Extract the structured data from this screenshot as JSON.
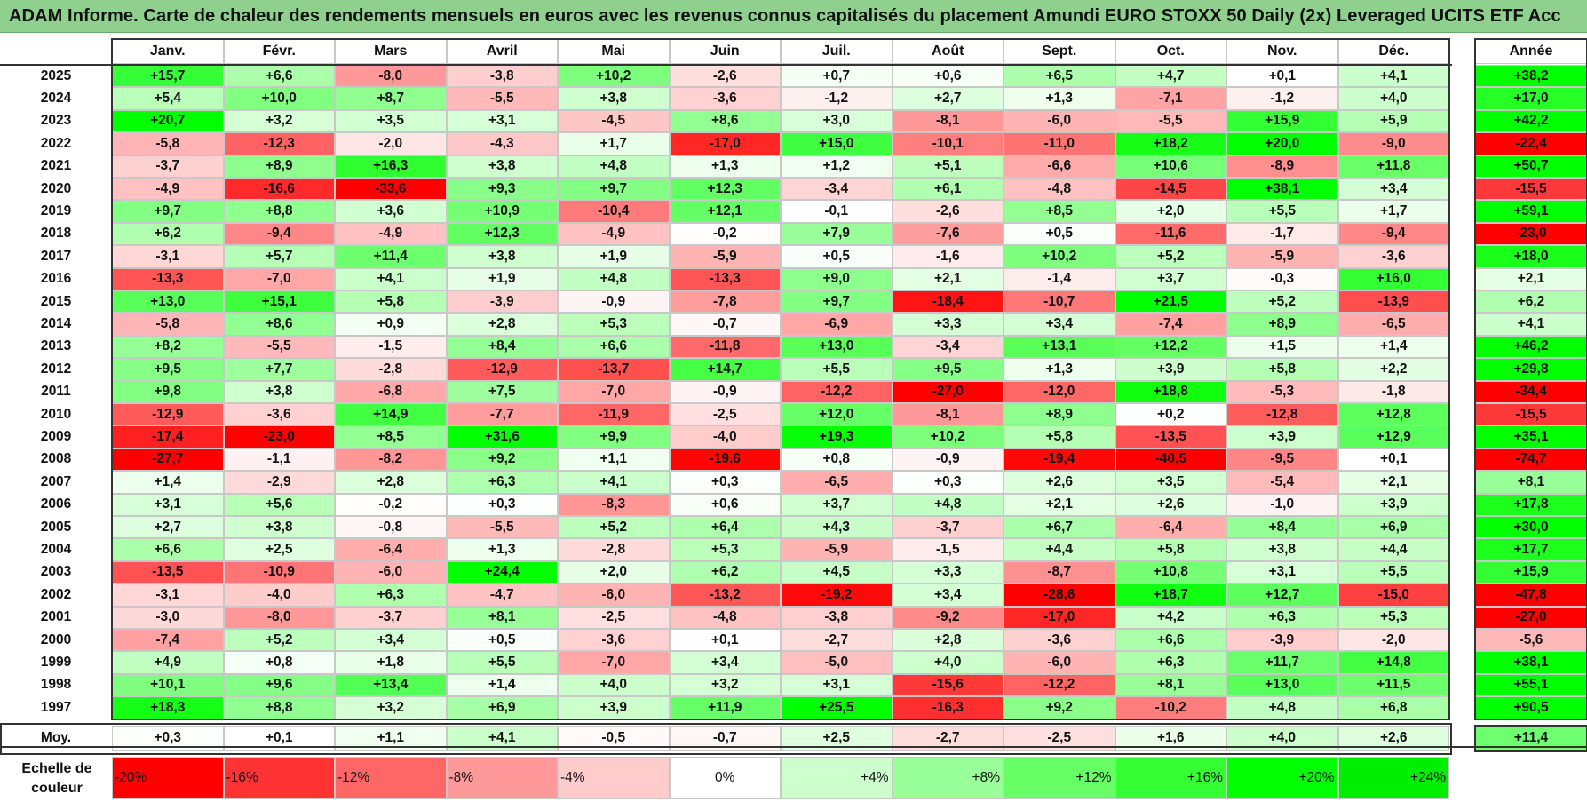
{
  "title": "ADAM Informe. Carte de chaleur des rendements mensuels en euros avec les revenus connus capitalisés du placement Amundi EURO STOXX 50 Daily (2x) Leveraged UCITS ETF Acc",
  "chart_data": {
    "type": "heatmap",
    "columns": [
      "Janv.",
      "Févr.",
      "Mars",
      "Avril",
      "Mai",
      "Juin",
      "Juil.",
      "Août",
      "Sept.",
      "Oct.",
      "Nov.",
      "Déc."
    ],
    "year_column": "Année",
    "rows": [
      {
        "year": "2025",
        "values": [
          15.7,
          6.6,
          -8.0,
          -3.8,
          10.2,
          -2.6,
          0.7,
          0.6,
          6.5,
          4.7,
          0.1,
          4.1
        ],
        "annual": 38.2
      },
      {
        "year": "2024",
        "values": [
          5.4,
          10.0,
          8.7,
          -5.5,
          3.8,
          -3.6,
          -1.2,
          2.7,
          1.3,
          -7.1,
          -1.2,
          4.0
        ],
        "annual": 17.0
      },
      {
        "year": "2023",
        "values": [
          20.7,
          3.2,
          3.5,
          3.1,
          -4.5,
          8.6,
          3.0,
          -8.1,
          -6.0,
          -5.5,
          15.9,
          5.9
        ],
        "annual": 42.2
      },
      {
        "year": "2022",
        "values": [
          -5.8,
          -12.3,
          -2.0,
          -4.3,
          1.7,
          -17.0,
          15.0,
          -10.1,
          -11.0,
          18.2,
          20.0,
          -9.0
        ],
        "annual": -22.4
      },
      {
        "year": "2021",
        "values": [
          -3.7,
          8.9,
          16.3,
          3.8,
          4.8,
          1.3,
          1.2,
          5.1,
          -6.6,
          10.6,
          -8.9,
          11.8
        ],
        "annual": 50.7
      },
      {
        "year": "2020",
        "values": [
          -4.9,
          -16.6,
          -33.6,
          9.3,
          9.7,
          12.3,
          -3.4,
          6.1,
          -4.8,
          -14.5,
          38.1,
          3.4
        ],
        "annual": -15.5
      },
      {
        "year": "2019",
        "values": [
          9.7,
          8.8,
          3.6,
          10.9,
          -10.4,
          12.1,
          -0.1,
          -2.6,
          8.5,
          2.0,
          5.5,
          1.7
        ],
        "annual": 59.1
      },
      {
        "year": "2018",
        "values": [
          6.2,
          -9.4,
          -4.9,
          12.3,
          -4.9,
          -0.2,
          7.9,
          -7.6,
          0.5,
          -11.6,
          -1.7,
          -9.4
        ],
        "annual": -23.0
      },
      {
        "year": "2017",
        "values": [
          -3.1,
          5.7,
          11.4,
          3.8,
          1.9,
          -5.9,
          0.5,
          -1.6,
          10.2,
          5.2,
          -5.9,
          -3.6
        ],
        "annual": 18.0
      },
      {
        "year": "2016",
        "values": [
          -13.3,
          -7.0,
          4.1,
          1.9,
          4.8,
          -13.3,
          9.0,
          2.1,
          -1.4,
          3.7,
          -0.3,
          16.0
        ],
        "annual": 2.1
      },
      {
        "year": "2015",
        "values": [
          13.0,
          15.1,
          5.8,
          -3.9,
          -0.9,
          -7.8,
          9.7,
          -18.4,
          -10.7,
          21.5,
          5.2,
          -13.9
        ],
        "annual": 6.2
      },
      {
        "year": "2014",
        "values": [
          -5.8,
          8.6,
          0.9,
          2.8,
          5.3,
          -0.7,
          -6.9,
          3.3,
          3.4,
          -7.4,
          8.9,
          -6.5
        ],
        "annual": 4.1
      },
      {
        "year": "2013",
        "values": [
          8.2,
          -5.5,
          -1.5,
          8.4,
          6.6,
          -11.8,
          13.0,
          -3.4,
          13.1,
          12.2,
          1.5,
          1.4
        ],
        "annual": 46.2
      },
      {
        "year": "2012",
        "values": [
          9.5,
          7.7,
          -2.8,
          -12.9,
          -13.7,
          14.7,
          5.5,
          9.5,
          1.3,
          3.9,
          5.8,
          2.2
        ],
        "annual": 29.8
      },
      {
        "year": "2011",
        "values": [
          9.8,
          3.8,
          -6.8,
          7.5,
          -7.0,
          -0.9,
          -12.2,
          -27.0,
          -12.0,
          18.8,
          -5.3,
          -1.8
        ],
        "annual": -34.4
      },
      {
        "year": "2010",
        "values": [
          -12.9,
          -3.6,
          14.9,
          -7.7,
          -11.9,
          -2.5,
          12.0,
          -8.1,
          8.9,
          0.2,
          -12.8,
          12.8
        ],
        "annual": -15.5
      },
      {
        "year": "2009",
        "values": [
          -17.4,
          -23.0,
          8.5,
          31.6,
          9.9,
          -4.0,
          19.3,
          10.2,
          5.8,
          -13.5,
          3.9,
          12.9
        ],
        "annual": 35.1
      },
      {
        "year": "2008",
        "values": [
          -27.7,
          -1.1,
          -8.2,
          9.2,
          1.1,
          -19.6,
          0.8,
          -0.9,
          -19.4,
          -40.5,
          -9.5,
          0.1
        ],
        "annual": -74.7
      },
      {
        "year": "2007",
        "values": [
          1.4,
          -2.9,
          2.8,
          6.3,
          4.1,
          0.3,
          -6.5,
          0.3,
          2.6,
          3.5,
          -5.4,
          2.1
        ],
        "annual": 8.1
      },
      {
        "year": "2006",
        "values": [
          3.1,
          5.6,
          -0.2,
          0.3,
          -8.3,
          0.6,
          3.7,
          4.8,
          2.1,
          2.6,
          -1.0,
          3.9
        ],
        "annual": 17.8
      },
      {
        "year": "2005",
        "values": [
          2.7,
          3.8,
          -0.8,
          -5.5,
          5.2,
          6.4,
          4.3,
          -3.7,
          6.7,
          -6.4,
          8.4,
          6.9
        ],
        "annual": 30.0
      },
      {
        "year": "2004",
        "values": [
          6.6,
          2.5,
          -6.4,
          1.3,
          -2.8,
          5.3,
          -5.9,
          -1.5,
          4.4,
          5.8,
          3.8,
          4.4
        ],
        "annual": 17.7
      },
      {
        "year": "2003",
        "values": [
          -13.5,
          -10.9,
          -6.0,
          24.4,
          2.0,
          6.2,
          4.5,
          3.3,
          -8.7,
          10.8,
          3.1,
          5.5
        ],
        "annual": 15.9
      },
      {
        "year": "2002",
        "values": [
          -3.1,
          -4.0,
          6.3,
          -4.7,
          -6.0,
          -13.2,
          -19.2,
          3.4,
          -28.6,
          18.7,
          12.7,
          -15.0
        ],
        "annual": -47.8
      },
      {
        "year": "2001",
        "values": [
          -3.0,
          -8.0,
          -3.7,
          8.1,
          -2.5,
          -4.8,
          -3.8,
          -9.2,
          -17.0,
          4.2,
          6.3,
          5.3
        ],
        "annual": -27.0
      },
      {
        "year": "2000",
        "values": [
          -7.4,
          5.2,
          3.4,
          0.5,
          -3.6,
          0.1,
          -2.7,
          2.8,
          -3.6,
          6.6,
          -3.9,
          -2.0
        ],
        "annual": -5.6
      },
      {
        "year": "1999",
        "values": [
          4.9,
          0.8,
          1.8,
          5.5,
          -7.0,
          3.4,
          -5.0,
          4.0,
          -6.0,
          6.3,
          11.7,
          14.8
        ],
        "annual": 38.1
      },
      {
        "year": "1998",
        "values": [
          10.1,
          9.6,
          13.4,
          1.4,
          4.0,
          3.2,
          3.1,
          -15.6,
          -12.2,
          8.1,
          13.0,
          11.5
        ],
        "annual": 55.1
      },
      {
        "year": "1997",
        "values": [
          18.3,
          8.8,
          3.2,
          6.9,
          3.9,
          11.9,
          25.5,
          -16.3,
          9.2,
          -10.2,
          4.8,
          6.8
        ],
        "annual": 90.5
      }
    ],
    "average": {
      "label": "Moy.",
      "values": [
        0.3,
        0.1,
        1.1,
        4.1,
        -0.5,
        -0.7,
        2.5,
        -2.7,
        -2.5,
        1.6,
        4.0,
        2.6
      ],
      "annual": 11.4
    },
    "color_scale": {
      "label": "Echelle de couleur",
      "entries": [
        {
          "label": "-20%",
          "value": -20,
          "color": "#ff0000"
        },
        {
          "label": "-16%",
          "value": -16,
          "color": "#ff3333"
        },
        {
          "label": "-12%",
          "value": -12,
          "color": "#ff6666"
        },
        {
          "label": "-8%",
          "value": -8,
          "color": "#ff9999"
        },
        {
          "label": "-4%",
          "value": -4,
          "color": "#ffcccc"
        },
        {
          "label": "0%",
          "value": 0,
          "color": "#ffffff"
        },
        {
          "label": "+4%",
          "value": 4,
          "color": "#ccffcc"
        },
        {
          "label": "+8%",
          "value": 8,
          "color": "#99ff99"
        },
        {
          "label": "+12%",
          "value": 12,
          "color": "#66ff66"
        },
        {
          "label": "+16%",
          "value": 16,
          "color": "#33ff33"
        },
        {
          "label": "+20%",
          "value": 20,
          "color": "#00ff00"
        },
        {
          "label": "+24%",
          "value": 24,
          "color": "#00ee00"
        }
      ]
    }
  }
}
